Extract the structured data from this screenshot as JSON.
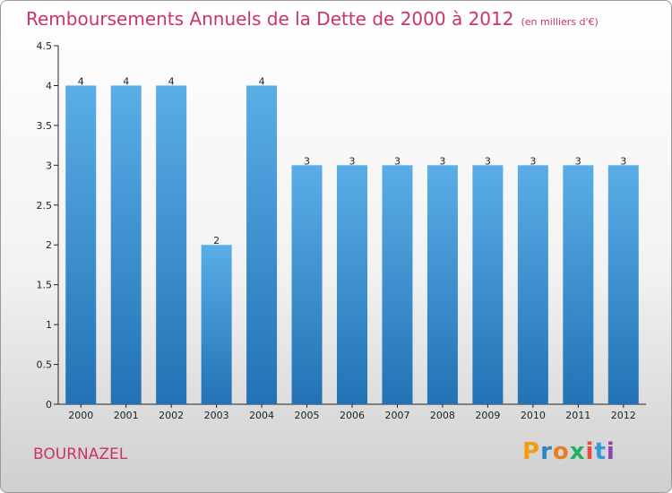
{
  "title": "Remboursements Annuels de la Dette de 2000 à 2012",
  "unit": "(en milliers d'€)",
  "city": "BOURNAZEL",
  "logo": {
    "letters": [
      "P",
      "r",
      "o",
      "x",
      "i",
      "t",
      "i"
    ],
    "colors": [
      "#f39c12",
      "#2e86c1",
      "#e67e22",
      "#27ae60",
      "#e74c3c",
      "#3498db",
      "#8e44ad"
    ]
  },
  "chart_data": {
    "type": "bar",
    "categories": [
      "2000",
      "2001",
      "2002",
      "2003",
      "2004",
      "2005",
      "2006",
      "2007",
      "2008",
      "2009",
      "2010",
      "2011",
      "2012"
    ],
    "values": [
      4,
      4,
      4,
      2,
      4,
      3,
      3,
      3,
      3,
      3,
      3,
      3,
      3
    ],
    "data_labels": [
      "4",
      "4",
      "4",
      "2",
      "4",
      "3",
      "3",
      "3",
      "3",
      "3",
      "3",
      "3",
      "3"
    ],
    "yticks": [
      "0",
      "0.5",
      "1",
      "1.5",
      "2",
      "2.5",
      "3",
      "3.5",
      "4",
      "4.5"
    ],
    "ylim": [
      0,
      4.5
    ],
    "bar_color": "#3a8fd0",
    "grid": false
  }
}
